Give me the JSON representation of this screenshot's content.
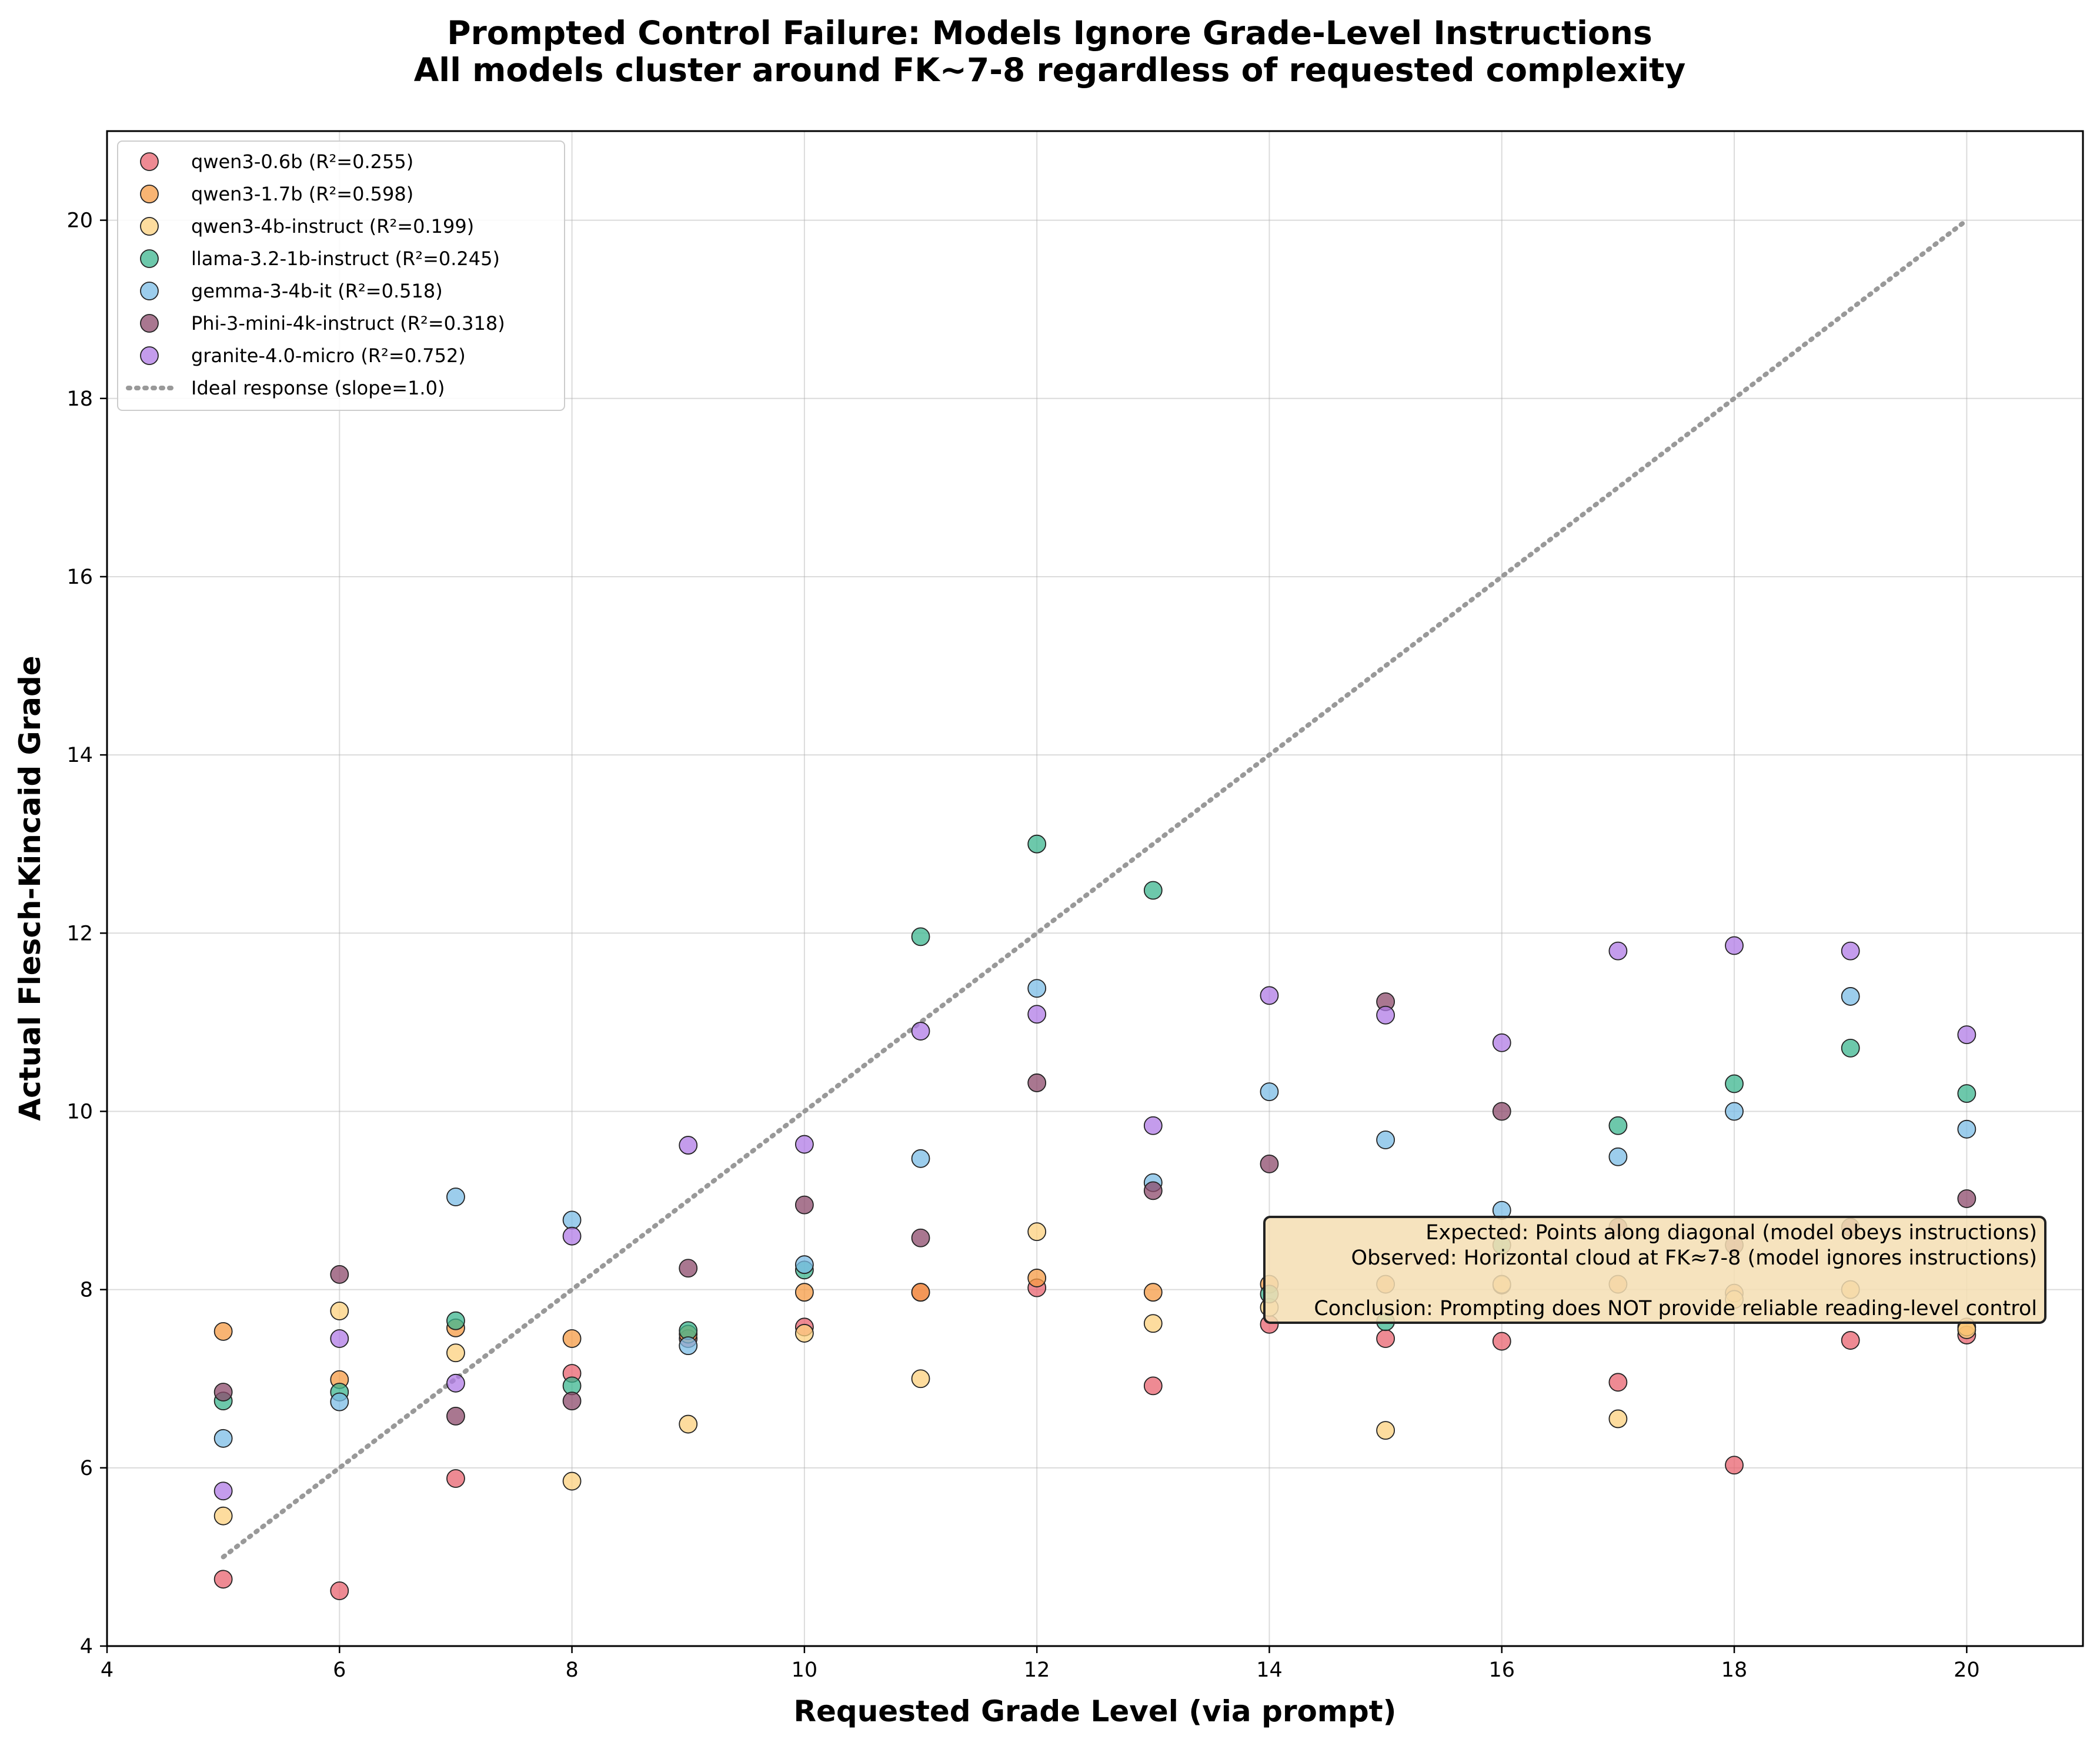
{
  "chart_data": {
    "type": "scatter",
    "title": "Prompted Control Failure: Models Ignore Grade-Level Instructions",
    "subtitle": "All models cluster around FK~7-8 regardless of requested complexity",
    "xlabel": "Requested Grade Level (via prompt)",
    "ylabel": "Actual Flesch-Kincaid Grade",
    "xlim": [
      4,
      21
    ],
    "ylim": [
      4,
      21
    ],
    "xticks": [
      4,
      6,
      8,
      10,
      12,
      14,
      16,
      18,
      20
    ],
    "yticks": [
      4,
      6,
      8,
      10,
      12,
      14,
      16,
      18,
      20
    ],
    "grid": true,
    "legend_position": "top-left",
    "series": [
      {
        "name": "qwen3-0.6b (R²=0.255)",
        "color": "#e8636f",
        "x": [
          5,
          6,
          7,
          8,
          9,
          10,
          11,
          12,
          13,
          14,
          15,
          16,
          17,
          18,
          19,
          20
        ],
        "y": [
          4.75,
          4.62,
          5.88,
          7.06,
          7.45,
          7.58,
          7.97,
          8.02,
          6.92,
          7.61,
          7.45,
          7.42,
          6.96,
          6.03,
          7.43,
          7.49
        ]
      },
      {
        "name": "qwen3-1.7b (R²=0.598)",
        "color": "#f59b44",
        "x": [
          5,
          6,
          7,
          8,
          9,
          10,
          11,
          12,
          13,
          14,
          15,
          16,
          17,
          18,
          19,
          20
        ],
        "y": [
          7.53,
          6.99,
          7.57,
          7.45,
          7.5,
          7.97,
          7.97,
          8.13,
          7.97,
          8.06,
          8.06,
          8.05,
          8.06,
          7.96,
          8.0,
          7.58
        ]
      },
      {
        "name": "qwen3-4b-instruct (R²=0.199)",
        "color": "#fcd07e",
        "x": [
          5,
          6,
          7,
          8,
          9,
          10,
          11,
          12,
          13,
          14,
          15,
          16,
          17,
          18,
          19,
          20
        ],
        "y": [
          5.46,
          7.76,
          7.29,
          5.85,
          6.49,
          7.51,
          7.0,
          8.65,
          7.62,
          7.8,
          6.42,
          8.06,
          6.55,
          7.89,
          8.0,
          7.55
        ]
      },
      {
        "name": "llama-3.2-1b-instruct (R²=0.245)",
        "color": "#3cb68f",
        "x": [
          5,
          6,
          7,
          8,
          9,
          10,
          11,
          12,
          13,
          14,
          15,
          16,
          17,
          18,
          19,
          20
        ],
        "y": [
          6.75,
          6.85,
          7.65,
          6.92,
          7.54,
          8.22,
          11.96,
          13.0,
          12.48,
          7.95,
          7.64,
          8.5,
          9.84,
          10.31,
          10.71,
          10.2
        ]
      },
      {
        "name": "gemma-3-4b-it (R²=0.518)",
        "color": "#7bbce6",
        "x": [
          5,
          6,
          7,
          8,
          9,
          10,
          11,
          12,
          13,
          14,
          15,
          16,
          17,
          18,
          19,
          20
        ],
        "y": [
          6.33,
          6.74,
          9.04,
          8.78,
          7.37,
          8.28,
          9.47,
          11.38,
          9.2,
          10.22,
          9.68,
          8.89,
          9.49,
          10.0,
          11.29,
          9.8
        ]
      },
      {
        "name": "Phi-3-mini-4k-instruct (R²=0.318)",
        "color": "#8c4a6b",
        "x": [
          5,
          6,
          7,
          8,
          9,
          10,
          11,
          12,
          13,
          14,
          15,
          16,
          17,
          18,
          19,
          20
        ],
        "y": [
          6.85,
          8.17,
          6.58,
          6.75,
          8.24,
          8.95,
          8.58,
          10.32,
          9.11,
          9.41,
          11.23,
          10.0,
          8.7,
          8.5,
          8.7,
          9.02
        ]
      },
      {
        "name": "granite-4.0-micro (R²=0.752)",
        "color": "#b07be6",
        "x": [
          5,
          6,
          7,
          8,
          9,
          10,
          11,
          12,
          13,
          14,
          15,
          16,
          17,
          18,
          19,
          20
        ],
        "y": [
          5.74,
          7.45,
          6.95,
          8.6,
          9.62,
          9.63,
          10.9,
          11.09,
          9.84,
          11.3,
          11.08,
          10.77,
          11.8,
          11.86,
          11.8,
          10.86
        ]
      }
    ],
    "reference_line": {
      "name": "Ideal response (slope=1.0)",
      "color": "#999999",
      "style": "dotted",
      "x": [
        5,
        20
      ],
      "y": [
        5,
        20
      ]
    },
    "annotation": {
      "lines": [
        "Expected: Points along diagonal (model obeys instructions)",
        "Observed: Horizontal cloud at FK≈7-8 (model ignores instructions)",
        "",
        "Conclusion: Prompting does NOT provide reliable reading-level control"
      ],
      "background": "#f5deb3",
      "border": "#222222"
    }
  }
}
